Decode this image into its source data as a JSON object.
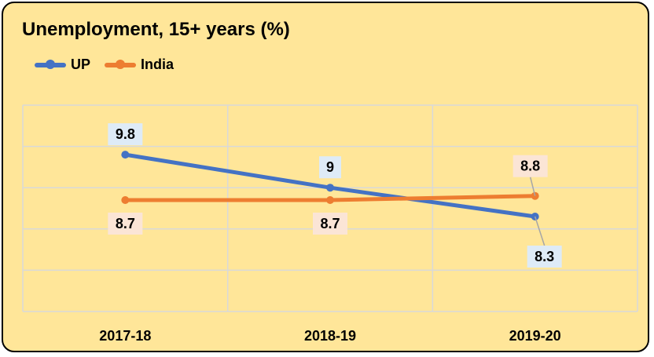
{
  "chart_data": {
    "type": "line",
    "title": "Unemployment, 15+ years (%)",
    "categories": [
      "2017-18",
      "2018-19",
      "2019-20"
    ],
    "series": [
      {
        "name": "UP",
        "color": "#4472c4",
        "values": [
          9.8,
          9,
          8.3
        ],
        "labels": [
          "9.8",
          "9",
          "8.3"
        ],
        "label_bg": "#deebf7"
      },
      {
        "name": "India",
        "color": "#ed7d31",
        "values": [
          8.7,
          8.7,
          8.8
        ],
        "labels": [
          "8.7",
          "8.7",
          "8.8"
        ],
        "label_bg": "#fbe5d6"
      }
    ],
    "xlabel": "",
    "ylabel": "",
    "ylim": [
      6,
      11
    ],
    "grid": true,
    "legend": "top-left"
  }
}
